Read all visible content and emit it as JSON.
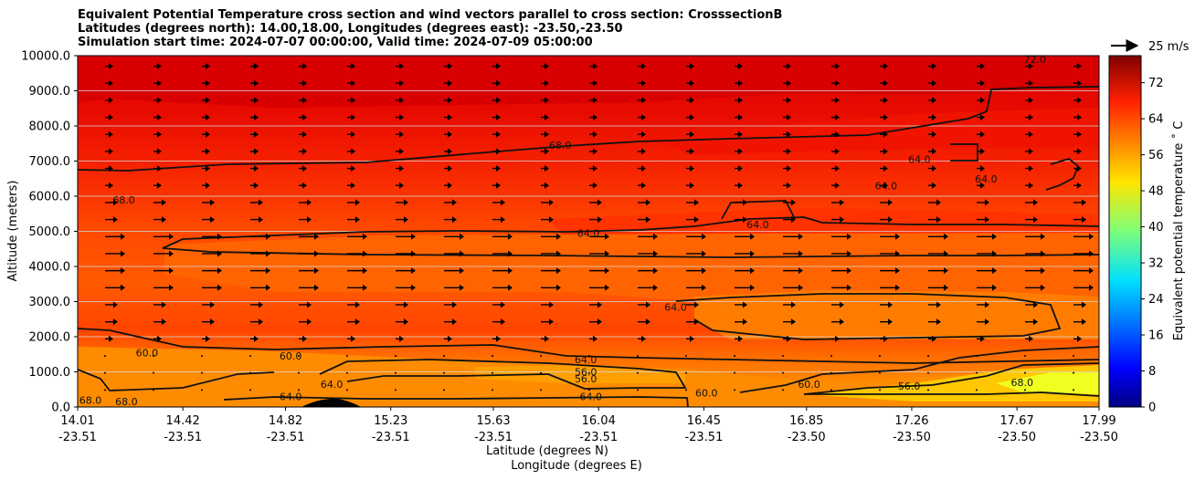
{
  "title_lines": [
    "Equivalent Potential Temperature cross section and wind vectors parallel to cross section: CrosssectionB",
    "Latitudes (degrees north): 14.00,18.00, Longitudes (degrees east): -23.50,-23.50",
    "Simulation start time: 2024-07-07 00:00:00, Valid time: 2024-07-09 05:00:00"
  ],
  "chart_data": {
    "type": "heatmap",
    "title": "Equivalent Potential Temperature cross section and wind vectors parallel to cross section: CrosssectionB",
    "ylabel": "Altitude (meters)",
    "xlabel_lines": [
      "Latitude (degrees N)",
      "Longitude (degrees E)"
    ],
    "ylim": [
      0,
      10000
    ],
    "y_ticks": [
      "0.0",
      "1000.0",
      "2000.0",
      "3000.0",
      "4000.0",
      "5000.0",
      "6000.0",
      "7000.0",
      "8000.0",
      "9000.0",
      "10000.0"
    ],
    "y_tick_values": [
      0,
      1000,
      2000,
      3000,
      4000,
      5000,
      6000,
      7000,
      8000,
      9000,
      10000
    ],
    "x_ticks_lat": [
      "14.01",
      "14.42",
      "14.82",
      "15.23",
      "15.63",
      "16.04",
      "16.45",
      "16.85",
      "17.26",
      "17.67",
      "17.99"
    ],
    "x_ticks_lon": [
      "-23.51",
      "-23.51",
      "-23.51",
      "-23.51",
      "-23.51",
      "-23.51",
      "-23.51",
      "-23.50",
      "-23.50",
      "-23.50",
      "-23.50"
    ],
    "x_tick_values": [
      14.01,
      14.42,
      14.82,
      15.23,
      15.63,
      16.04,
      16.45,
      16.85,
      17.26,
      17.67,
      17.99
    ],
    "xlim": [
      14.01,
      17.99
    ],
    "grid": "horizontal",
    "colorbar": {
      "label": "Equivalent potential temperature $^\\circ$C",
      "label_display": "Equivalent potential temperature ˚ C",
      "ticks": [
        "0",
        "8",
        "16",
        "24",
        "32",
        "40",
        "48",
        "56",
        "64",
        "72"
      ],
      "tick_values": [
        0,
        8,
        16,
        24,
        32,
        40,
        48,
        56,
        64,
        72
      ],
      "range": [
        0,
        78
      ],
      "colormap": "jet"
    },
    "contour_labels": [
      {
        "text": "72.0",
        "x": 17.74,
        "y": 9900
      },
      {
        "text": "68.0",
        "x": 15.89,
        "y": 7450
      },
      {
        "text": "68.0",
        "x": 14.19,
        "y": 5900
      },
      {
        "text": "64.0",
        "x": 17.29,
        "y": 7050
      },
      {
        "text": "64.0",
        "x": 17.16,
        "y": 6300
      },
      {
        "text": "64.0",
        "x": 17.55,
        "y": 6500
      },
      {
        "text": "64.0",
        "x": 16.66,
        "y": 5200
      },
      {
        "text": "64.0",
        "x": 16.0,
        "y": 4950
      },
      {
        "text": "64.0",
        "x": 16.34,
        "y": 2850
      },
      {
        "text": "60.0",
        "x": 14.28,
        "y": 1550
      },
      {
        "text": "60.0",
        "x": 14.84,
        "y": 1450
      },
      {
        "text": "64.0",
        "x": 15.0,
        "y": 650
      },
      {
        "text": "64.0",
        "x": 14.84,
        "y": 300
      },
      {
        "text": "64.0",
        "x": 15.99,
        "y": 1350
      },
      {
        "text": "56.0",
        "x": 15.99,
        "y": 1000
      },
      {
        "text": "56.0",
        "x": 15.99,
        "y": 800
      },
      {
        "text": "64.0",
        "x": 16.01,
        "y": 300
      },
      {
        "text": "60.0",
        "x": 16.46,
        "y": 400
      },
      {
        "text": "60.0",
        "x": 16.86,
        "y": 650
      },
      {
        "text": "56.0",
        "x": 17.25,
        "y": 600
      },
      {
        "text": "68.0",
        "x": 17.69,
        "y": 700
      },
      {
        "text": "68.0",
        "x": 14.06,
        "y": 200
      },
      {
        "text": "68.0",
        "x": 14.2,
        "y": 150
      }
    ],
    "wind_reference": {
      "label": "25 m/s",
      "value": 25
    },
    "wind_field": {
      "direction": "parallel to cross section (northward)",
      "strongest_layer_m": [
        3500,
        5000
      ]
    }
  }
}
